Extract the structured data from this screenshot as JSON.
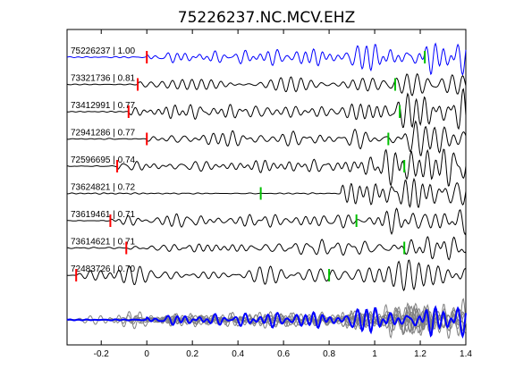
{
  "chart_data": {
    "type": "line",
    "title": "75226237.NC.MCV.EHZ",
    "xlim": [
      -0.35,
      1.4
    ],
    "xticks": [
      -0.2,
      0,
      0.2,
      0.4,
      0.6,
      0.8,
      1,
      1.2,
      1.4
    ],
    "xtick_labels": [
      "-0.2",
      "0",
      "0.2",
      "0.4",
      "0.6",
      "0.8",
      "1",
      "1.2",
      "1.4"
    ],
    "grid": false,
    "colors": {
      "master": "#0000ff",
      "trace": "#000000",
      "stack": "#808080",
      "p_pick": "#ff0000",
      "s_pick": "#00c000"
    },
    "traces": [
      {
        "label": "75226237 | 1.00",
        "id": "75226237",
        "cc": 1.0,
        "p_time": 0.0,
        "s_time": 1.22,
        "master": true,
        "seed": 1
      },
      {
        "label": "73321736 | 0.81",
        "id": "73321736",
        "cc": 0.81,
        "p_time": -0.04,
        "s_time": 1.09,
        "seed": 2
      },
      {
        "label": "73412991 | 0.77",
        "id": "73412991",
        "cc": 0.77,
        "p_time": -0.08,
        "s_time": 1.11,
        "seed": 3
      },
      {
        "label": "72941286 | 0.77",
        "id": "72941286",
        "cc": 0.77,
        "p_time": 0.0,
        "s_time": 1.06,
        "seed": 4
      },
      {
        "label": "72596695 | 0.74",
        "id": "72596695",
        "cc": 0.74,
        "p_time": -0.13,
        "s_time": 1.13,
        "seed": 5
      },
      {
        "label": "73624821 | 0.72",
        "id": "73624821",
        "cc": 0.72,
        "p_time": null,
        "s_time": 0.5,
        "seed": 6
      },
      {
        "label": "73619461 | 0.71",
        "id": "73619461",
        "cc": 0.71,
        "p_time": -0.16,
        "s_time": 0.92,
        "seed": 7
      },
      {
        "label": "73614621 | 0.71",
        "id": "73614621",
        "cc": 0.71,
        "p_time": -0.09,
        "s_time": 1.13,
        "seed": 8
      },
      {
        "label": "72483726 | 0.70",
        "id": "72483726",
        "cc": 0.7,
        "p_time": -0.31,
        "s_time": 0.8,
        "seed": 9
      }
    ]
  }
}
